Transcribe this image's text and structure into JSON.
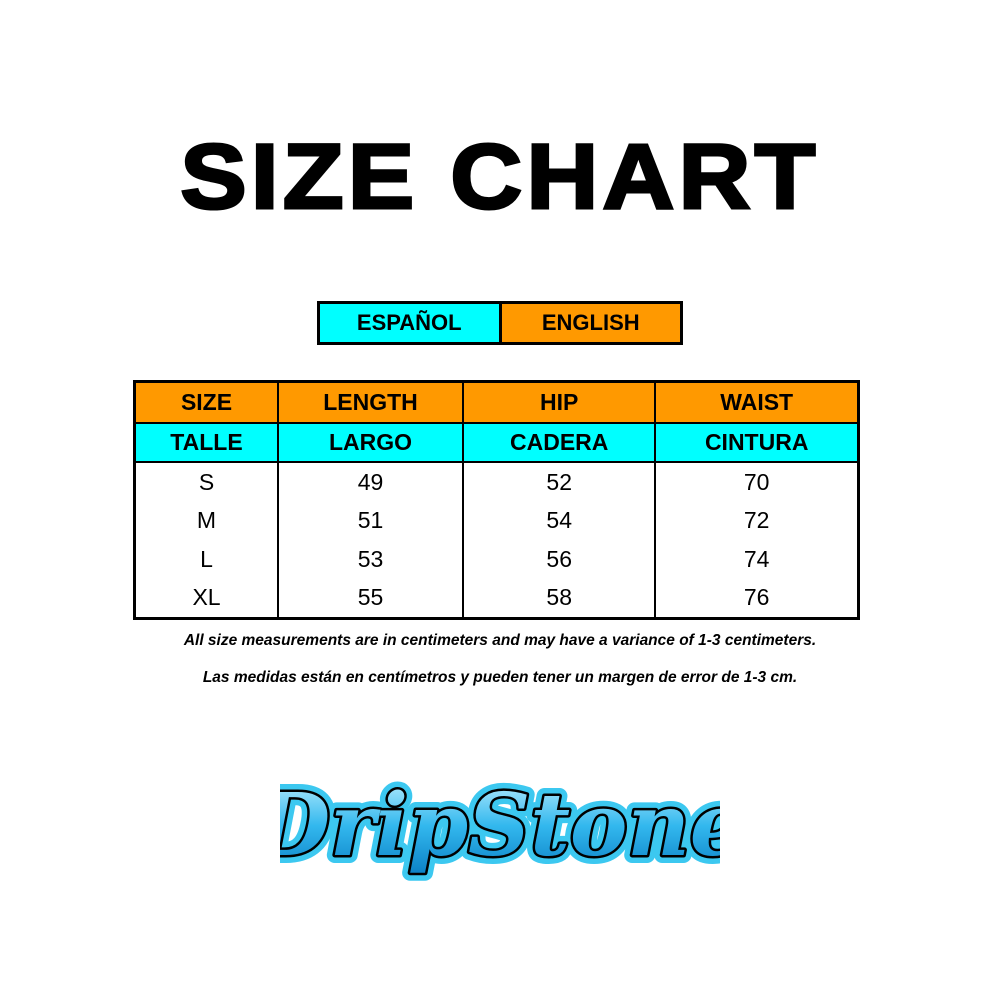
{
  "title": "SIZE CHART",
  "language_legend": {
    "spanish": "ESPAÑOL",
    "english": "ENGLISH",
    "spanish_color": "#00ffff",
    "english_color": "#ff9900"
  },
  "table": {
    "headers_en": [
      "SIZE",
      "LENGTH",
      "HIP",
      "WAIST"
    ],
    "headers_es": [
      "TALLE",
      "LARGO",
      "CADERA",
      "CINTURA"
    ],
    "rows": [
      [
        "S",
        "49",
        "52",
        "70"
      ],
      [
        "M",
        "51",
        "54",
        "72"
      ],
      [
        "L",
        "53",
        "56",
        "74"
      ],
      [
        "XL",
        "55",
        "58",
        "76"
      ]
    ]
  },
  "notes": {
    "english": "All size measurements are in centimeters and may have a variance of 1-3 centimeters.",
    "spanish": "Las medidas están en centímetros y pueden tener un margen de error de 1-3 cm."
  },
  "logo": {
    "text": "DripStone"
  }
}
